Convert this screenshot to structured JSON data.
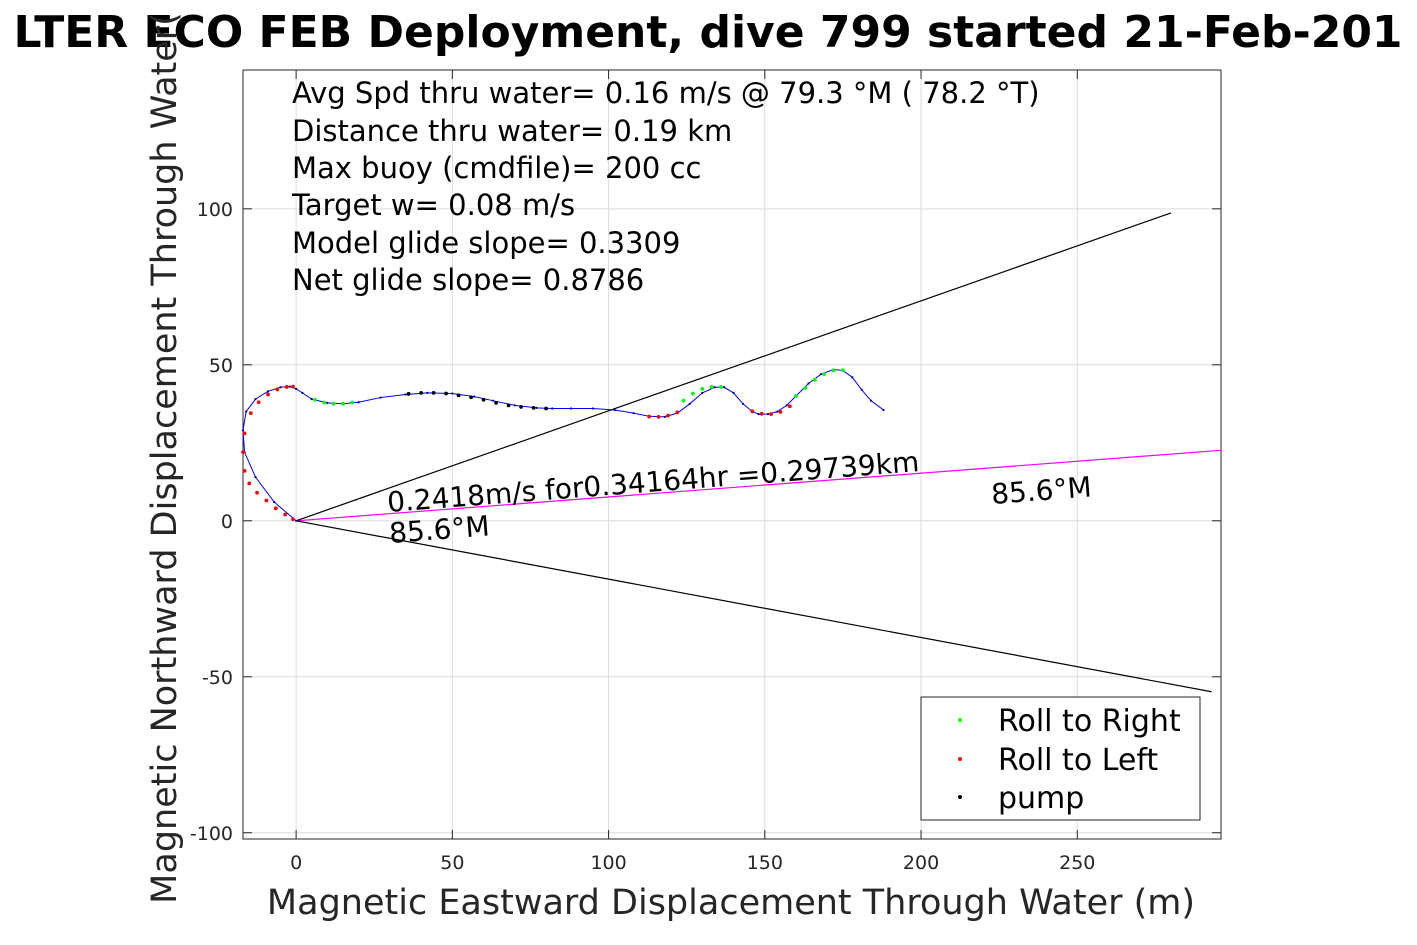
{
  "chart_data": {
    "type": "scatter",
    "title": "LTER ECO FEB Deployment, dive 799 started 21-Feb-201",
    "xlabel": "Magnetic Eastward Displacement Through Water (m)",
    "ylabel": "Magnetic Northward Displacement Through Water(",
    "xlim": [
      -17,
      296
    ],
    "ylim": [
      -102,
      144.5
    ],
    "xticks": [
      0,
      50,
      100,
      150,
      200,
      250
    ],
    "xtick_labels": [
      "0",
      "50",
      "100",
      "150",
      "200",
      "250"
    ],
    "yticks": [
      -100,
      -50,
      0,
      50,
      100
    ],
    "ytick_labels": [
      "-100",
      "-50",
      "0",
      "50",
      "100"
    ],
    "grid": true,
    "legend_position": "bottom-right",
    "stats": [
      "Avg Spd thru water=  0.16 m/s @  79.3 °M ( 78.2 °T)",
      "Distance thru water=  0.19 km",
      "Max buoy (cmdfile)= 200 cc",
      "Target w= 0.08 m/s",
      "Model glide slope= 0.3309",
      "Net glide slope= 0.8786"
    ],
    "annotations": {
      "current_label": "0.2418m/s for0.34164hr =0.29739km",
      "heading_near": "85.6°M",
      "heading_far": "85.6°M"
    },
    "track": {
      "name": "dive track",
      "color": "#0000ff",
      "x": [
        0,
        -7,
        -13,
        -16.5,
        -17,
        -16,
        -13,
        -9,
        -5,
        -2,
        0,
        2,
        5,
        10,
        15,
        20,
        27,
        35,
        42,
        50,
        57,
        63,
        70,
        77,
        82,
        88,
        95,
        102,
        108,
        113,
        118,
        122,
        126,
        130,
        134,
        137,
        140,
        143,
        146,
        148,
        151,
        154,
        157,
        160,
        164,
        168,
        172,
        175,
        178,
        181,
        184,
        188
      ],
      "y": [
        0,
        6,
        14,
        22,
        29,
        35,
        39,
        41.5,
        42.8,
        43,
        42.3,
        41,
        39,
        37.8,
        37.5,
        38,
        39.5,
        40.5,
        41,
        40.8,
        39.8,
        38.5,
        37,
        36.2,
        36,
        36,
        36,
        35.5,
        34.5,
        33.5,
        33.3,
        34.5,
        37.5,
        41,
        42.8,
        42.8,
        41,
        37.5,
        35,
        34.2,
        34.2,
        35,
        37,
        40,
        44,
        47,
        48.5,
        48.2,
        46,
        42,
        38.5,
        35.5
      ]
    },
    "series": [
      {
        "name": "Roll to Right",
        "color": "#00ff00",
        "x": [
          6,
          9,
          12,
          15,
          18,
          124,
          127,
          130,
          133,
          136,
          160,
          163,
          166,
          169,
          172,
          175
        ],
        "y": [
          38.8,
          37.9,
          37.5,
          37.5,
          37.9,
          38.5,
          40.8,
          42.3,
          42.9,
          42.9,
          40,
          42.6,
          45.2,
          47,
          48.2,
          48.3
        ]
      },
      {
        "name": "Roll to Left",
        "color": "#ff0000",
        "x": [
          -1,
          -3,
          -6,
          -9,
          -12,
          -14.5,
          -16.5,
          -17,
          -16.5,
          -15,
          -12.5,
          -9.5,
          -6.5,
          -3.5,
          -1,
          113,
          116,
          119,
          122,
          146,
          149,
          152,
          155,
          158
        ],
        "y": [
          43,
          42.9,
          42.1,
          40.5,
          38,
          34.5,
          28,
          22,
          16,
          12,
          9,
          6.5,
          4,
          2,
          0.5,
          33.4,
          33.3,
          33.7,
          34.8,
          35.1,
          34.3,
          34.2,
          34.9,
          36.7
        ]
      },
      {
        "name": "pump",
        "color": "#000000",
        "x": [
          36,
          40,
          44,
          48,
          52,
          56,
          60,
          64,
          68,
          72,
          76,
          80
        ],
        "y": [
          40.7,
          41,
          41,
          40.8,
          40.2,
          39.6,
          38.8,
          37.8,
          37,
          36.5,
          36.2,
          36
        ]
      }
    ],
    "lines": [
      {
        "name": "current direction",
        "color": "#ff00ff",
        "x": [
          0,
          296
        ],
        "y": [
          0,
          22.6
        ]
      },
      {
        "name": "upper envelope",
        "color": "#000000",
        "x": [
          0,
          280
        ],
        "y": [
          0,
          98.7
        ]
      },
      {
        "name": "lower envelope",
        "color": "#000000",
        "x": [
          0,
          293
        ],
        "y": [
          0,
          -54.8
        ]
      }
    ]
  }
}
